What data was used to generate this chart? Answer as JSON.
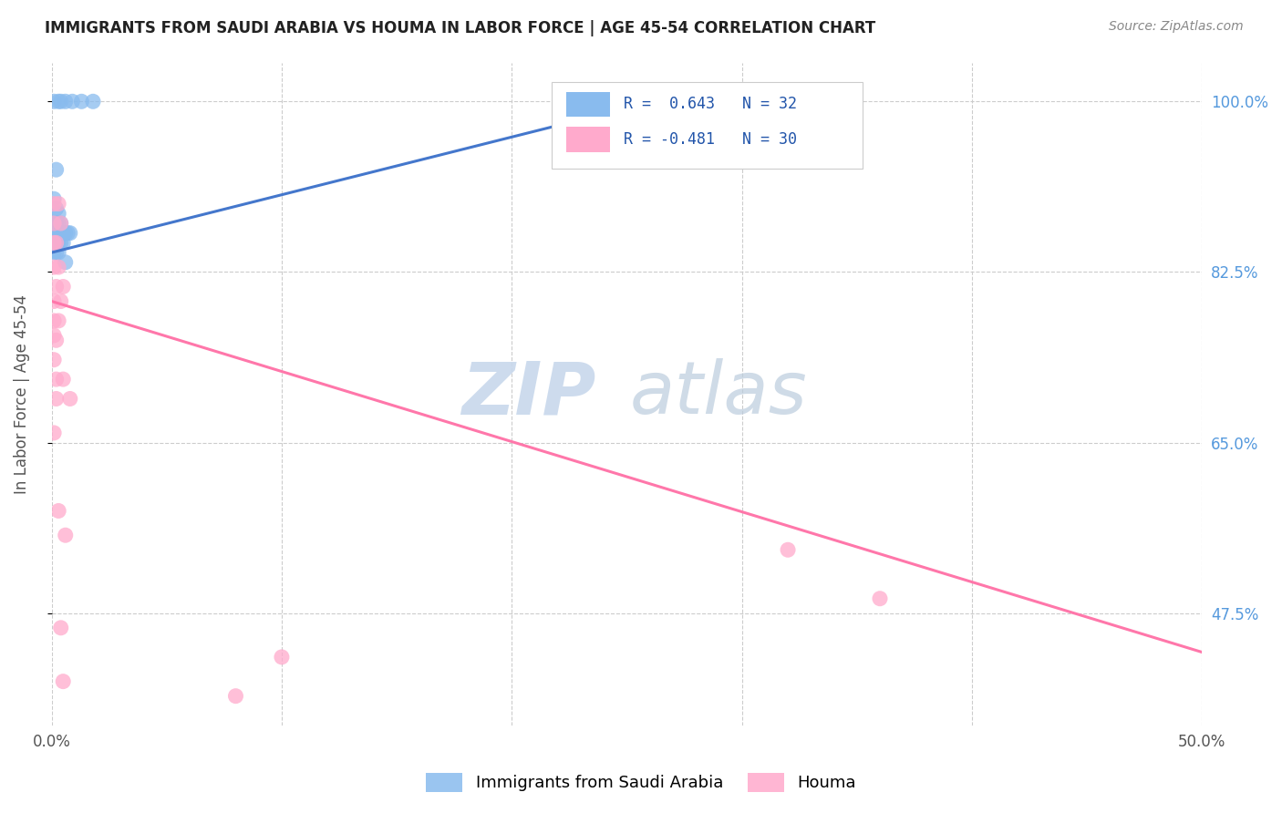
{
  "title": "IMMIGRANTS FROM SAUDI ARABIA VS HOUMA IN LABOR FORCE | AGE 45-54 CORRELATION CHART",
  "source": "Source: ZipAtlas.com",
  "ylabel": "In Labor Force | Age 45-54",
  "xlim": [
    0.0,
    0.5
  ],
  "ylim": [
    0.36,
    1.04
  ],
  "y_ticks": [
    0.475,
    0.65,
    0.825,
    1.0
  ],
  "y_tick_labels": [
    "47.5%",
    "65.0%",
    "82.5%",
    "100.0%"
  ],
  "x_ticks": [
    0.0,
    0.1,
    0.2,
    0.3,
    0.4,
    0.5
  ],
  "x_tick_labels": [
    "0.0%",
    "",
    "",
    "",
    "",
    "50.0%"
  ],
  "saudi_color": "#89BBEE",
  "houma_color": "#FFAACC",
  "saudi_line_color": "#4477CC",
  "houma_line_color": "#FF77AA",
  "saudi_R": "R =  0.643",
  "saudi_N": "N = 32",
  "houma_R": "R = -0.481",
  "houma_N": "N = 30",
  "legend_label_saudi": "Immigrants from Saudi Arabia",
  "legend_label_houma": "Houma",
  "saudi_points": [
    [
      0.001,
      1.0
    ],
    [
      0.003,
      1.0
    ],
    [
      0.004,
      1.0
    ],
    [
      0.006,
      1.0
    ],
    [
      0.009,
      1.0
    ],
    [
      0.013,
      1.0
    ],
    [
      0.018,
      1.0
    ],
    [
      0.002,
      0.93
    ],
    [
      0.001,
      0.9
    ],
    [
      0.002,
      0.89
    ],
    [
      0.003,
      0.885
    ],
    [
      0.001,
      0.875
    ],
    [
      0.002,
      0.875
    ],
    [
      0.003,
      0.875
    ],
    [
      0.004,
      0.875
    ],
    [
      0.001,
      0.865
    ],
    [
      0.002,
      0.865
    ],
    [
      0.003,
      0.865
    ],
    [
      0.004,
      0.865
    ],
    [
      0.005,
      0.865
    ],
    [
      0.006,
      0.865
    ],
    [
      0.007,
      0.865
    ],
    [
      0.008,
      0.865
    ],
    [
      0.001,
      0.855
    ],
    [
      0.002,
      0.855
    ],
    [
      0.003,
      0.855
    ],
    [
      0.004,
      0.855
    ],
    [
      0.005,
      0.855
    ],
    [
      0.001,
      0.845
    ],
    [
      0.002,
      0.845
    ],
    [
      0.003,
      0.845
    ],
    [
      0.006,
      0.835
    ]
  ],
  "houma_points": [
    [
      0.001,
      0.895
    ],
    [
      0.003,
      0.895
    ],
    [
      0.001,
      0.875
    ],
    [
      0.004,
      0.875
    ],
    [
      0.001,
      0.855
    ],
    [
      0.002,
      0.855
    ],
    [
      0.001,
      0.83
    ],
    [
      0.003,
      0.83
    ],
    [
      0.002,
      0.81
    ],
    [
      0.005,
      0.81
    ],
    [
      0.001,
      0.795
    ],
    [
      0.004,
      0.795
    ],
    [
      0.001,
      0.775
    ],
    [
      0.003,
      0.775
    ],
    [
      0.001,
      0.76
    ],
    [
      0.002,
      0.755
    ],
    [
      0.001,
      0.735
    ],
    [
      0.002,
      0.715
    ],
    [
      0.005,
      0.715
    ],
    [
      0.002,
      0.695
    ],
    [
      0.008,
      0.695
    ],
    [
      0.001,
      0.66
    ],
    [
      0.003,
      0.58
    ],
    [
      0.006,
      0.555
    ],
    [
      0.004,
      0.46
    ],
    [
      0.005,
      0.405
    ],
    [
      0.32,
      0.54
    ],
    [
      0.36,
      0.49
    ],
    [
      0.1,
      0.43
    ],
    [
      0.08,
      0.39
    ]
  ],
  "saudi_line": [
    0.0,
    0.845,
    0.27,
    1.005
  ],
  "houma_line": [
    0.0,
    0.795,
    0.5,
    0.435
  ],
  "watermark_zip_color": "#C8D8EC",
  "watermark_atlas_color": "#BBCCDD",
  "right_tick_color": "#5599DD"
}
